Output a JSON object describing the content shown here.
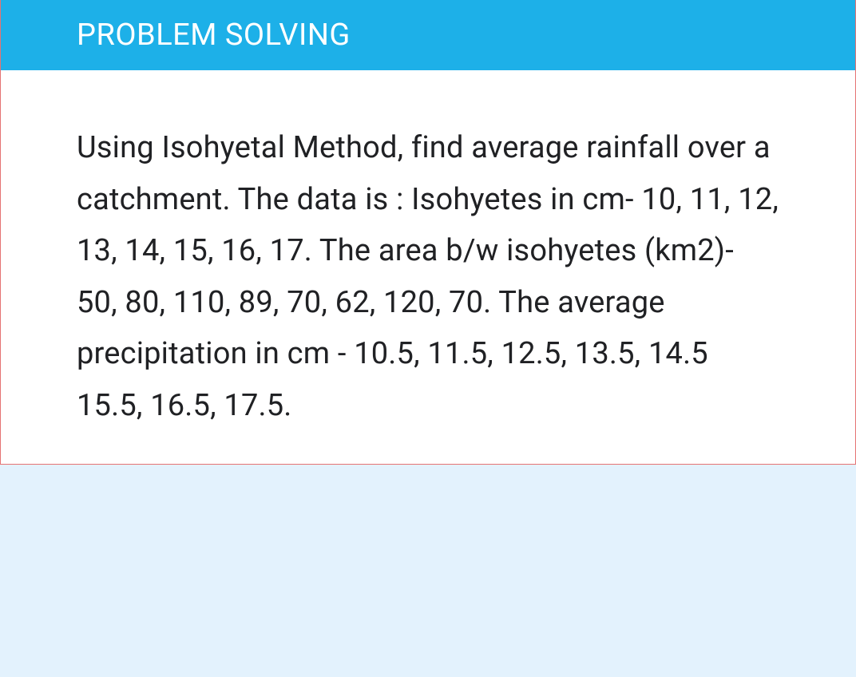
{
  "card": {
    "header_title": "PROBLEM SOLVING",
    "body_text": "Using Isohyetal Method, find average rainfall over a catchment. The data is : Isohyetes in cm- 10, 11, 12, 13, 14, 15, 16, 17. The area b/w isohyetes (km2)- 50, 80, 110, 89, 70, 62, 120, 70. The average precipitation in cm - 10.5, 11.5, 12.5, 13.5, 14.5 15.5, 16.5, 17.5."
  },
  "styling": {
    "page_background_color": "#e3f2fd",
    "card_background_color": "#ffffff",
    "card_border_color": "#e57373",
    "header_background_color": "#1db0e8",
    "header_text_color": "#ffffff",
    "header_fontsize": 38,
    "body_text_color": "#202124",
    "body_fontsize": 38,
    "body_line_height": 1.7
  },
  "problem_data": {
    "type": "table",
    "method": "Isohyetal Method",
    "objective": "find average rainfall over a catchment",
    "columns": [
      "Isohyetes (cm)",
      "Area between isohyetes (km2)",
      "Average precipitation (cm)"
    ],
    "rows": [
      [
        10,
        50,
        10.5
      ],
      [
        11,
        80,
        11.5
      ],
      [
        12,
        110,
        12.5
      ],
      [
        13,
        89,
        13.5
      ],
      [
        14,
        70,
        14.5
      ],
      [
        15,
        62,
        15.5
      ],
      [
        16,
        120,
        16.5
      ],
      [
        17,
        70,
        17.5
      ]
    ]
  }
}
